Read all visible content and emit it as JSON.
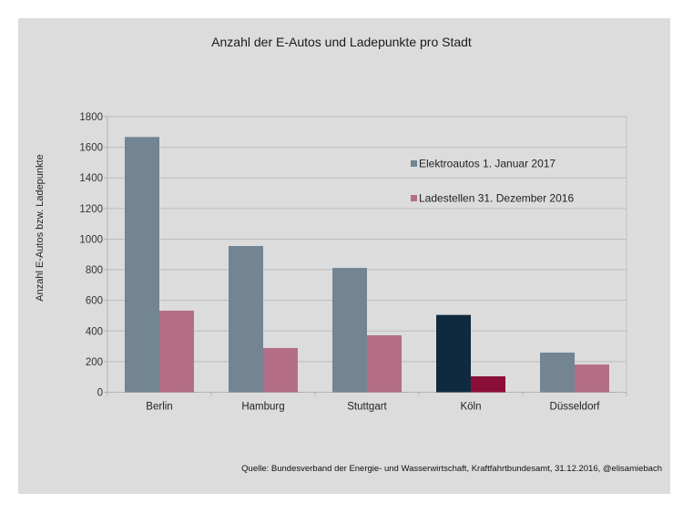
{
  "chart_data": {
    "type": "bar",
    "title": "Anzahl der E-Autos und Ladepunkte pro Stadt",
    "xlabel": "",
    "ylabel": "Anzahl E-Autos bzw. Ladepunkte",
    "ylim": [
      0,
      1800
    ],
    "yticks": [
      0,
      200,
      400,
      600,
      800,
      1000,
      1200,
      1400,
      1600,
      1800
    ],
    "grid": true,
    "legend_position": "top-right",
    "categories": [
      "Berlin",
      "Hamburg",
      "Stuttgart",
      "Köln",
      "Düsseldorf"
    ],
    "series": [
      {
        "name": "Elektroautos 1. Januar 2017",
        "color": "#738593",
        "values": [
          1667,
          955,
          812,
          505,
          259
        ],
        "highlight": {
          "index": 3,
          "color": "#0f2a3e"
        }
      },
      {
        "name": "Ladestellen 31. Dezember 2016",
        "color": "#b36e85",
        "values": [
          533,
          289,
          372,
          104,
          181
        ],
        "highlight": {
          "index": 3,
          "color": "#8a0e38"
        }
      }
    ],
    "source": "Quelle: Bundesverband der Energie- und Wasserwirtschaft, Kraftfahrtbundesamt, 31.12.2016, @elisamiebach"
  }
}
